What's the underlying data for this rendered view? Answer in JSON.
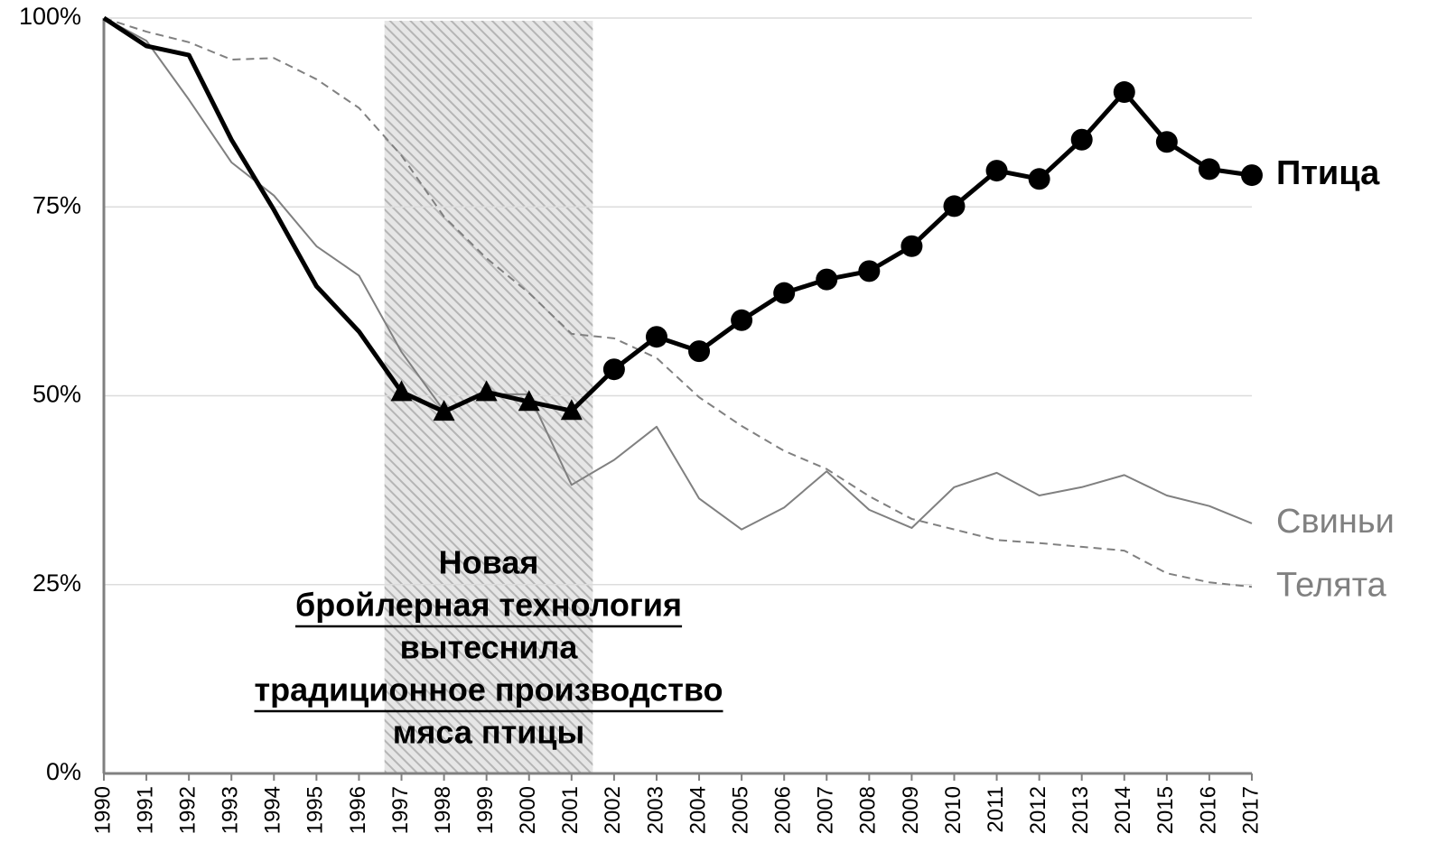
{
  "chart_data": {
    "type": "line",
    "x": [
      1990,
      1991,
      1992,
      1993,
      1994,
      1995,
      1996,
      1997,
      1998,
      1999,
      2000,
      2001,
      2002,
      2003,
      2004,
      2005,
      2006,
      2007,
      2008,
      2009,
      2010,
      2011,
      2012,
      2013,
      2014,
      2015,
      2016,
      2017
    ],
    "xlim": [
      1990,
      2017
    ],
    "xticks": [
      1990,
      1991,
      1992,
      1993,
      1994,
      1995,
      1996,
      1997,
      1998,
      1999,
      2000,
      2001,
      2002,
      2003,
      2004,
      2005,
      2006,
      2007,
      2008,
      2009,
      2010,
      2011,
      2012,
      2013,
      2014,
      2015,
      2016,
      2017
    ],
    "ylim": [
      0,
      100
    ],
    "yticks": [
      {
        "value": 0,
        "label": "0%"
      },
      {
        "value": 25,
        "label": "25%"
      },
      {
        "value": 50,
        "label": "50%"
      },
      {
        "value": 75,
        "label": "75%"
      },
      {
        "value": 100,
        "label": "100%"
      }
    ],
    "grid": true,
    "highlight_xlim": [
      1996.6,
      2001.5
    ],
    "annotation": [
      {
        "text": "Новая",
        "underline": false
      },
      {
        "text": "бройлерная технология",
        "underline": true
      },
      {
        "text": "вытеснила",
        "underline": false
      },
      {
        "text": "традиционное производство",
        "underline": true
      },
      {
        "text": "мяса птицы",
        "underline": false
      }
    ],
    "series": [
      {
        "name": "Свиньи",
        "color": "#808080",
        "dash": false,
        "width": 2,
        "bold": false,
        "values": [
          100,
          97.0,
          89.2,
          80.9,
          76.5,
          69.8,
          65.9,
          55.8,
          48.0,
          50.2,
          50.2,
          38.2,
          41.5,
          45.9,
          36.4,
          32.3,
          35.2,
          40.0,
          34.9,
          32.5,
          37.9,
          39.8,
          36.8,
          37.9,
          39.5,
          36.8,
          35.4,
          33.1
        ]
      },
      {
        "name": "Телята",
        "color": "#808080",
        "dash": true,
        "width": 2,
        "bold": false,
        "values": [
          100,
          98.2,
          96.8,
          94.5,
          94.7,
          91.9,
          88.1,
          81.8,
          73.7,
          68.2,
          63.6,
          58.2,
          57.6,
          55.0,
          49.8,
          46.0,
          42.7,
          40.3,
          36.7,
          33.7,
          32.3,
          30.9,
          30.5,
          30.0,
          29.5,
          26.5,
          25.3,
          24.7
        ]
      },
      {
        "name": "Птица",
        "color": "#000000",
        "dash": false,
        "width": 5,
        "bold": true,
        "markers": [
          "none",
          "none",
          "none",
          "none",
          "none",
          "none",
          "none",
          "triangle",
          "triangle",
          "triangle",
          "triangle",
          "triangle",
          "circle",
          "circle",
          "circle",
          "circle",
          "circle",
          "circle",
          "circle",
          "circle",
          "circle",
          "circle",
          "circle",
          "circle",
          "circle",
          "circle",
          "circle",
          "circle"
        ],
        "values": [
          100,
          96.3,
          95.1,
          83.9,
          74.6,
          64.5,
          58.5,
          50.5,
          47.9,
          50.5,
          49.2,
          48.0,
          53.5,
          57.8,
          55.9,
          60.0,
          63.6,
          65.4,
          66.5,
          69.8,
          75.1,
          79.8,
          78.7,
          83.9,
          90.2,
          83.6,
          80.0,
          79.2
        ]
      }
    ]
  }
}
